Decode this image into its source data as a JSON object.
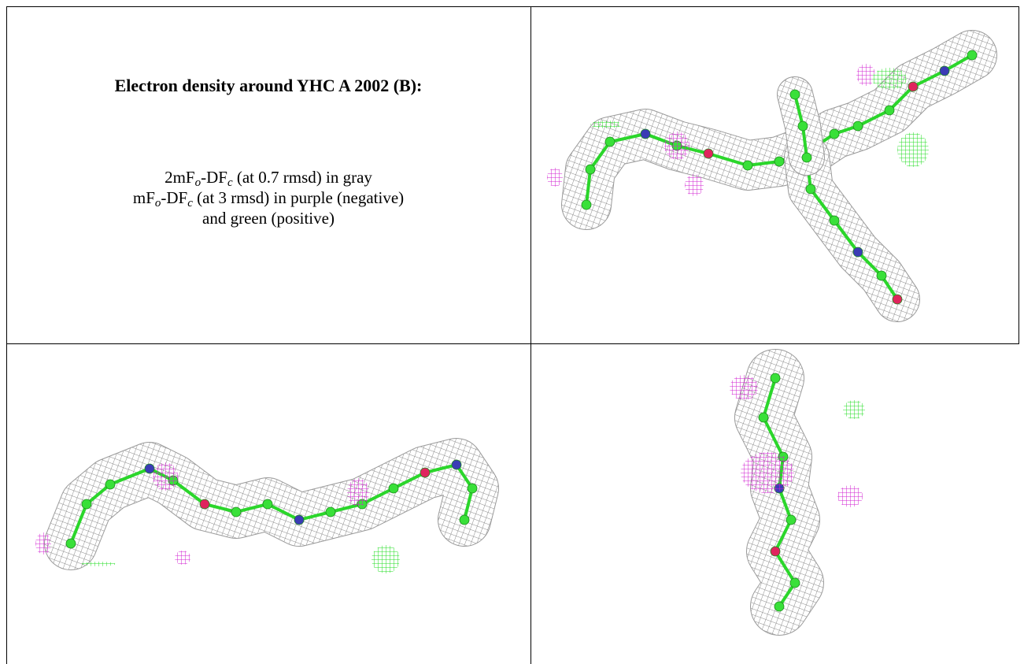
{
  "caption": {
    "title": "Electron density around YHC A 2002 (B):",
    "lines": [
      [
        "2mF",
        "o",
        "-DF",
        "c",
        " (at 0.7 rmsd) in gray"
      ],
      [
        "mF",
        "o",
        "-DF",
        "c",
        " (at 3 rmsd) in purple (negative)"
      ],
      [
        "and green (positive)"
      ]
    ]
  }
}
